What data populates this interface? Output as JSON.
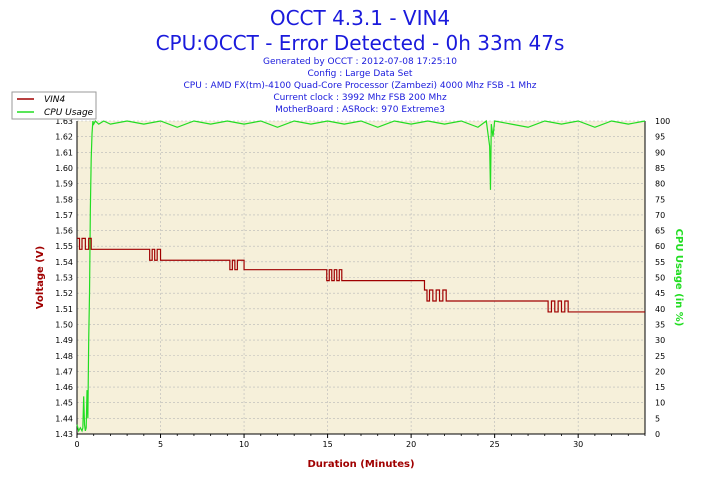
{
  "header": {
    "title": "OCCT 4.3.1 - VIN4",
    "subtitle": "CPU:OCCT - Error Detected - 0h 33m 47s",
    "info_lines": [
      "Generated by OCCT : 2012-07-08 17:25:10",
      "Config : Large Data Set",
      "CPU : AMD FX(tm)-4100 Quad-Core Processor (Zambezi) 4000 Mhz FSB -1 Mhz",
      "Current clock : 3992 Mhz FSB 200 Mhz",
      "MotherBoard : ASRock: 970 Extreme3"
    ]
  },
  "colors": {
    "voltage": "#a00000",
    "cpu_usage": "#22dd22",
    "plot_bg": "#f6f0da",
    "grid": "#b8b8b8"
  },
  "chart_data": {
    "type": "line",
    "xlabel": "Duration (Minutes)",
    "ylabel_left": "Voltage (V)",
    "ylabel_right": "CPU Usage (in %)",
    "xlim": [
      0,
      34
    ],
    "ylim_left": [
      1.43,
      1.63
    ],
    "ylim_right": [
      0,
      100
    ],
    "x_ticks": [
      0,
      5,
      10,
      15,
      20,
      25,
      30
    ],
    "y_ticks_left": [
      1.43,
      1.44,
      1.45,
      1.46,
      1.47,
      1.48,
      1.49,
      1.5,
      1.51,
      1.52,
      1.53,
      1.54,
      1.55,
      1.56,
      1.57,
      1.58,
      1.59,
      1.6,
      1.61,
      1.62,
      1.63
    ],
    "y_ticks_right": [
      0,
      5,
      10,
      15,
      20,
      25,
      30,
      35,
      40,
      45,
      50,
      55,
      60,
      65,
      70,
      75,
      80,
      85,
      90,
      95,
      100
    ],
    "grid": true,
    "legend": "top-left",
    "series": [
      {
        "name": "VIN4",
        "axis": "left",
        "x": [
          0,
          0.15,
          0.3,
          0.5,
          0.7,
          0.85,
          1.0,
          2.5,
          4.2,
          4.35,
          4.5,
          4.65,
          4.8,
          5.0,
          7.0,
          9.0,
          9.15,
          9.3,
          9.45,
          9.6,
          10.0,
          12.5,
          14.8,
          14.95,
          15.1,
          15.25,
          15.4,
          15.55,
          15.7,
          15.85,
          16.0,
          17.5,
          20.8,
          20.95,
          21.1,
          21.3,
          21.5,
          21.7,
          21.9,
          22.1,
          22.3,
          25.0,
          28.0,
          28.2,
          28.4,
          28.6,
          28.8,
          29.0,
          29.2,
          29.4,
          30.0,
          34.0
        ],
        "values": [
          1.555,
          1.548,
          1.555,
          1.548,
          1.555,
          1.548,
          1.548,
          1.548,
          1.548,
          1.541,
          1.548,
          1.541,
          1.548,
          1.541,
          1.541,
          1.541,
          1.535,
          1.541,
          1.535,
          1.541,
          1.535,
          1.535,
          1.535,
          1.528,
          1.535,
          1.528,
          1.535,
          1.528,
          1.535,
          1.528,
          1.528,
          1.528,
          1.522,
          1.515,
          1.522,
          1.515,
          1.522,
          1.515,
          1.522,
          1.515,
          1.515,
          1.515,
          1.515,
          1.508,
          1.515,
          1.508,
          1.515,
          1.508,
          1.515,
          1.508,
          1.508,
          1.508
        ]
      },
      {
        "name": "CPU Usage",
        "axis": "right",
        "x": [
          0,
          0.1,
          0.2,
          0.3,
          0.35,
          0.4,
          0.45,
          0.5,
          0.55,
          0.6,
          0.65,
          0.7,
          0.75,
          0.8,
          0.85,
          0.9,
          0.95,
          1.0,
          1.1,
          1.3,
          1.6,
          2.0,
          3.0,
          4.0,
          5.0,
          6.0,
          7.0,
          8.0,
          9.0,
          10.0,
          11.0,
          12.0,
          13.0,
          14.0,
          15.0,
          16.0,
          17.0,
          18.0,
          19.0,
          20.0,
          21.0,
          22.0,
          23.0,
          24.0,
          24.5,
          24.7,
          24.75,
          24.8,
          24.9,
          25.0,
          26.0,
          27.0,
          28.0,
          29.0,
          30.0,
          31.0,
          32.0,
          33.0,
          34.0
        ],
        "values": [
          3,
          1,
          2,
          1,
          2,
          12,
          3,
          1,
          2,
          14,
          5,
          30,
          45,
          72,
          88,
          96,
          100,
          99,
          100,
          99,
          100,
          99,
          100,
          99,
          100,
          98,
          100,
          99,
          100,
          99,
          100,
          98,
          100,
          99,
          100,
          99,
          100,
          98,
          100,
          99,
          100,
          99,
          100,
          98,
          100,
          92,
          78,
          99,
          95,
          100,
          99,
          98,
          100,
          99,
          100,
          98,
          100,
          99,
          100
        ]
      }
    ]
  }
}
